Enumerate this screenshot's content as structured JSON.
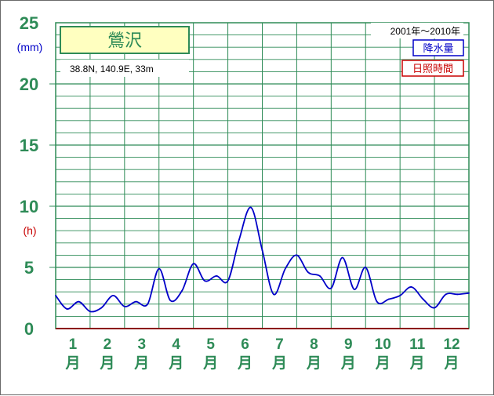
{
  "chart_data": {
    "type": "line",
    "title": "鶯沢",
    "coords_text": "38.8N,  140.9E,  33m",
    "period": "2001年〜2010年",
    "legend": [
      {
        "label": "降水量",
        "color": "#0000c8"
      },
      {
        "label": "日照時間",
        "color": "#c80000"
      }
    ],
    "y_unit_left": "(mm)",
    "y_unit_right": "(h)",
    "ylim": [
      0,
      25
    ],
    "yticks": [
      "0",
      "5",
      "10",
      "15",
      "20",
      "25"
    ],
    "xlim": [
      0.5,
      12.5
    ],
    "months": [
      {
        "num": "1",
        "suffix": "月"
      },
      {
        "num": "2",
        "suffix": "月"
      },
      {
        "num": "3",
        "suffix": "月"
      },
      {
        "num": "4",
        "suffix": "月"
      },
      {
        "num": "5",
        "suffix": "月"
      },
      {
        "num": "6",
        "suffix": "月"
      },
      {
        "num": "7",
        "suffix": "月"
      },
      {
        "num": "8",
        "suffix": "月"
      },
      {
        "num": "9",
        "suffix": "月"
      },
      {
        "num": "10",
        "suffix": "月"
      },
      {
        "num": "11",
        "suffix": "月"
      },
      {
        "num": "12",
        "suffix": "月"
      }
    ],
    "series": [
      {
        "name": "降水量",
        "color": "#0000c8",
        "x": [
          0.5,
          0.83,
          1.17,
          1.5,
          1.83,
          2.17,
          2.5,
          2.83,
          3.17,
          3.5,
          3.83,
          4.17,
          4.5,
          4.83,
          5.17,
          5.5,
          5.83,
          6.17,
          6.5,
          6.83,
          7.17,
          7.5,
          7.83,
          8.17,
          8.5,
          8.83,
          9.17,
          9.5,
          9.83,
          10.17,
          10.5,
          10.83,
          11.17,
          11.5,
          11.83,
          12.17,
          12.5
        ],
        "y": [
          2.7,
          1.6,
          2.2,
          1.4,
          1.7,
          2.7,
          1.8,
          2.2,
          2.0,
          4.9,
          2.3,
          3.1,
          5.3,
          3.9,
          4.3,
          3.9,
          7.3,
          9.9,
          6.4,
          2.8,
          4.9,
          6.0,
          4.6,
          4.3,
          3.3,
          5.8,
          3.2,
          5.0,
          2.2,
          2.4,
          2.7,
          3.4,
          2.4,
          1.7,
          2.8,
          2.8,
          2.9
        ]
      }
    ]
  }
}
